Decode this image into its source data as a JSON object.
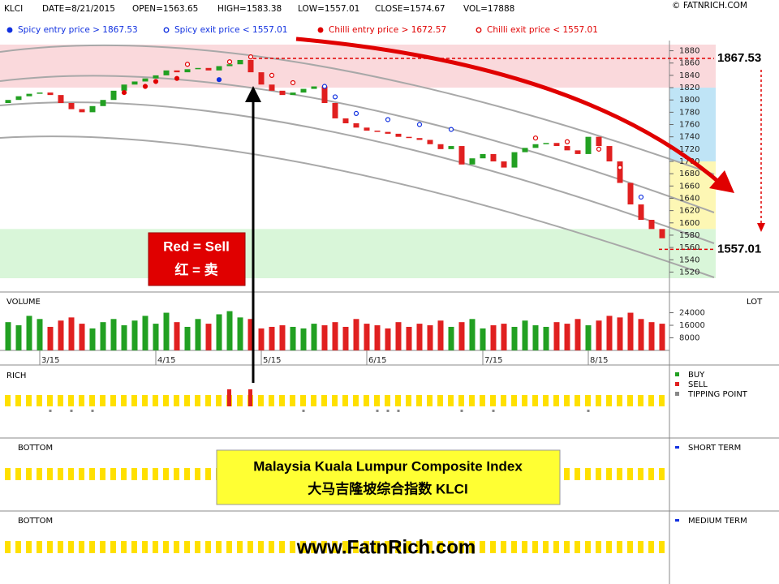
{
  "header": {
    "symbol": "KLCI",
    "date": "DATE=8/21/2015",
    "open": "OPEN=1563.65",
    "high": "HIGH=1583.38",
    "low": "LOW=1557.01",
    "close": "CLOSE=1574.67",
    "vol": "VOL=17888",
    "copyright": "© FATNRICH.COM"
  },
  "chart_data": {
    "type": "candlestick",
    "categories": [
      null,
      null,
      null,
      "3/15",
      null,
      null,
      null,
      null,
      null,
      null,
      null,
      null,
      null,
      null,
      "4/15",
      null,
      null,
      null,
      null,
      null,
      null,
      null,
      null,
      null,
      "5/15",
      null,
      null,
      null,
      null,
      null,
      null,
      null,
      null,
      null,
      "6/15",
      null,
      null,
      null,
      null,
      null,
      null,
      null,
      null,
      null,
      null,
      "7/15",
      null,
      null,
      null,
      null,
      null,
      null,
      null,
      null,
      null,
      "8/15",
      null,
      null,
      null,
      null,
      null,
      null,
      null
    ],
    "open": [
      1795,
      1800,
      1806,
      1810,
      1812,
      1808,
      1795,
      1785,
      1780,
      1790,
      1800,
      1815,
      1825,
      1830,
      1835,
      1840,
      1848,
      1845,
      1850,
      1852,
      1848,
      1855,
      1858,
      1865,
      1845,
      1825,
      1815,
      1808,
      1812,
      1818,
      1822,
      1795,
      1770,
      1762,
      1755,
      1750,
      1748,
      1745,
      1740,
      1738,
      1735,
      1728,
      1720,
      1725,
      1695,
      1705,
      1712,
      1700,
      1690,
      1715,
      1722,
      1728,
      1730,
      1725,
      1718,
      1712,
      1740,
      1725,
      1700,
      1665,
      1630,
      1605,
      1590
    ],
    "close": [
      1800,
      1806,
      1810,
      1812,
      1808,
      1795,
      1785,
      1780,
      1790,
      1800,
      1815,
      1825,
      1830,
      1835,
      1840,
      1848,
      1845,
      1850,
      1852,
      1848,
      1855,
      1858,
      1865,
      1845,
      1825,
      1815,
      1808,
      1812,
      1818,
      1822,
      1795,
      1770,
      1762,
      1755,
      1750,
      1748,
      1745,
      1740,
      1738,
      1735,
      1728,
      1720,
      1725,
      1695,
      1705,
      1712,
      1700,
      1690,
      1715,
      1722,
      1728,
      1730,
      1725,
      1718,
      1712,
      1740,
      1725,
      1700,
      1665,
      1630,
      1605,
      1590,
      1575
    ],
    "up_color": "#22a022",
    "down_color": "#e02020",
    "ylim": [
      1510,
      1890
    ],
    "yticks": [
      1520,
      1540,
      1560,
      1580,
      1600,
      1620,
      1640,
      1660,
      1680,
      1700,
      1720,
      1740,
      1760,
      1780,
      1800,
      1820,
      1840,
      1860,
      1880
    ],
    "bands": [
      {
        "from": 1820,
        "to": 1890,
        "color": "#fad9dc",
        "full": true
      },
      {
        "from": 1700,
        "to": 1820,
        "color": "#bfe4f6",
        "full": false
      },
      {
        "from": 1590,
        "to": 1700,
        "color": "#fdf7b4",
        "full": false
      },
      {
        "from": 1510,
        "to": 1590,
        "color": "#d9f6d9",
        "full": true
      }
    ],
    "levels": [
      {
        "value": 1867.53,
        "color": "#e00000"
      },
      {
        "value": 1557.01,
        "color": "#e00000"
      }
    ],
    "signals": [
      {
        "name": "Spicy entry price > 1867.53",
        "color": "#1030e0",
        "filled": true,
        "x": [
          20
        ],
        "values": [
          1833
        ]
      },
      {
        "name": "Spicy exit price < 1557.01",
        "color": "#1030e0",
        "filled": false,
        "x": [
          30,
          31,
          33,
          36,
          39,
          42,
          60
        ],
        "values": [
          1822,
          1805,
          1778,
          1768,
          1760,
          1752,
          1642
        ]
      },
      {
        "name": "Chilli entry price > 1672.57",
        "color": "#e00000",
        "filled": true,
        "x": [
          11,
          13,
          14,
          16
        ],
        "values": [
          1812,
          1822,
          1830,
          1835
        ]
      },
      {
        "name": "Chilli exit price < 1557.01",
        "color": "#e00000",
        "filled": false,
        "x": [
          17,
          21,
          23,
          25,
          27,
          50,
          53,
          56,
          58
        ],
        "values": [
          1858,
          1862,
          1870,
          1840,
          1828,
          1738,
          1732,
          1720,
          1690
        ]
      }
    ],
    "volume": {
      "title": "VOLUME",
      "unit": "LOT",
      "ylim": [
        0,
        31000
      ],
      "yticks": [
        8000,
        16000,
        24000
      ],
      "values": [
        18000,
        16000,
        22000,
        20000,
        15000,
        19000,
        21000,
        17000,
        14000,
        18000,
        20000,
        16000,
        19000,
        22000,
        17000,
        24000,
        18000,
        15000,
        20000,
        17000,
        23000,
        25000,
        21000,
        20000,
        14000,
        15000,
        16000,
        15000,
        14000,
        17000,
        16000,
        18000,
        15000,
        20000,
        17000,
        16000,
        14000,
        18000,
        15000,
        17000,
        16000,
        19000,
        15000,
        18000,
        20000,
        14000,
        16000,
        17000,
        15000,
        19000,
        16000,
        15000,
        18000,
        17000,
        20000,
        16000,
        19000,
        22000,
        21000,
        24000,
        20000,
        18000,
        17000
      ]
    },
    "rich": {
      "title": "RICH",
      "legend": [
        "BUY",
        "SELL",
        "TIPPING POINT"
      ],
      "sell_signals": [
        21,
        23
      ],
      "tipping_points": [
        4,
        6,
        8,
        28,
        35,
        36,
        37,
        43,
        46,
        55
      ]
    },
    "bottom_short": {
      "title": "BOTTOM",
      "legend": "SHORT TERM"
    },
    "bottom_medium": {
      "title": "BOTTOM",
      "legend": "MEDIUM TERM"
    }
  },
  "notes": {
    "sell_box": [
      "Red = Sell",
      "红 = 卖"
    ],
    "index_box": [
      "Malaysia Kuala Lumpur Composite Index",
      "大马吉隆坡综合指数 KLCI"
    ],
    "website": "www.FatnRich.com"
  }
}
